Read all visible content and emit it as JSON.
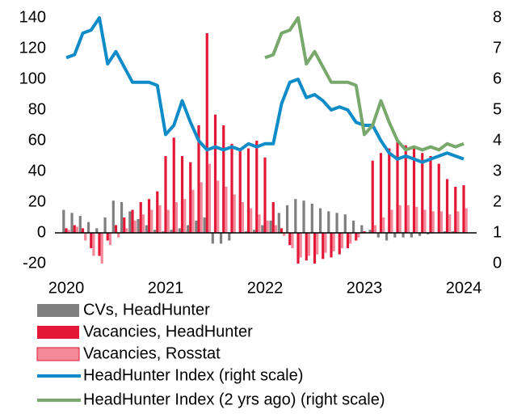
{
  "chart_data": {
    "type": "bar-line",
    "categories": [
      "2020",
      null,
      null,
      null,
      null,
      null,
      null,
      null,
      null,
      null,
      null,
      null,
      "2021",
      null,
      null,
      null,
      null,
      null,
      null,
      null,
      null,
      null,
      null,
      null,
      "2022",
      null,
      null,
      null,
      null,
      null,
      null,
      null,
      null,
      null,
      null,
      null,
      "2023",
      null,
      null,
      null,
      null,
      null,
      null,
      null,
      null,
      null,
      null,
      null,
      "2024"
    ],
    "series": [
      {
        "name": "CVs, HeadHunter",
        "kind": "bar",
        "color": "#7f7f7f",
        "values": [
          15,
          13,
          11,
          7,
          3,
          10,
          21,
          20,
          14,
          9,
          5,
          2,
          1,
          2,
          3,
          5,
          8,
          10,
          -7,
          -7,
          -5,
          0,
          1,
          2,
          5,
          8,
          13,
          18,
          22,
          21,
          19,
          16,
          14,
          13,
          12,
          8,
          5,
          2,
          -3,
          -5,
          -3,
          -3,
          -3,
          -2,
          -1,
          0,
          1,
          1,
          0
        ]
      },
      {
        "name": "Vacancies, HeadHunter",
        "kind": "bar",
        "color": "#e31837",
        "values": [
          3,
          5,
          3,
          -10,
          -15,
          -5,
          5,
          10,
          15,
          20,
          22,
          27,
          50,
          62,
          50,
          46,
          70,
          130,
          77,
          70,
          58,
          55,
          55,
          60,
          49,
          20,
          3,
          -8,
          -20,
          -18,
          -20,
          -17,
          -16,
          -14,
          -10,
          -5,
          1,
          47,
          52,
          55,
          59,
          57,
          55,
          52,
          50,
          45,
          35,
          30,
          31
        ]
      },
      {
        "name": "Vacancies, Rosstat",
        "kind": "bar",
        "color": "#f4899b",
        "values": [
          2,
          4,
          -5,
          -15,
          -20,
          -8,
          -3,
          3,
          8,
          12,
          15,
          18,
          15,
          20,
          22,
          28,
          33,
          45,
          34,
          30,
          25,
          20,
          16,
          12,
          8,
          5,
          -2,
          -10,
          -16,
          -15,
          -14,
          -13,
          -12,
          -10,
          -7,
          -3,
          0,
          5,
          10,
          15,
          18,
          18,
          17,
          15,
          14,
          14,
          12,
          14,
          16
        ]
      },
      {
        "name": "HeadHunter Index (right scale)",
        "kind": "line",
        "axis": "y2",
        "color": "#0f8cc8",
        "values": [
          6.7,
          6.8,
          7.5,
          7.6,
          8.0,
          6.5,
          6.9,
          6.4,
          5.9,
          5.9,
          5.9,
          5.8,
          4.2,
          4.5,
          5.3,
          4.6,
          4.0,
          3.7,
          3.8,
          3.7,
          3.8,
          3.7,
          3.9,
          3.8,
          3.9,
          3.9,
          5.2,
          5.9,
          6.0,
          5.4,
          5.5,
          5.3,
          5.0,
          5.1,
          5.0,
          4.6,
          4.5,
          4.5,
          4.0,
          3.6,
          3.4,
          3.5,
          3.4,
          3.3,
          3.4,
          3.5,
          3.6,
          3.5,
          3.4
        ]
      },
      {
        "name": "HeadHunter Index (2 yrs ago) (right scale)",
        "kind": "line",
        "axis": "y2",
        "color": "#78a86c",
        "values": [
          null,
          null,
          null,
          null,
          null,
          null,
          null,
          null,
          null,
          null,
          null,
          null,
          null,
          null,
          null,
          null,
          null,
          null,
          null,
          null,
          null,
          null,
          null,
          null,
          6.7,
          6.8,
          7.5,
          7.6,
          8.0,
          6.5,
          6.9,
          6.4,
          5.9,
          5.9,
          5.9,
          5.8,
          4.2,
          4.5,
          5.3,
          4.6,
          4.0,
          3.7,
          3.8,
          3.7,
          3.8,
          3.7,
          3.9,
          3.8,
          3.9
        ]
      }
    ],
    "ylim": [
      -20,
      140
    ],
    "yticks": [
      -20,
      0,
      20,
      40,
      60,
      80,
      100,
      120,
      140
    ],
    "y2lim": [
      0,
      8
    ],
    "y2ticks": [
      0,
      1,
      2,
      3,
      4,
      5,
      6,
      7,
      8
    ],
    "grid": false,
    "legend": "bottom"
  }
}
